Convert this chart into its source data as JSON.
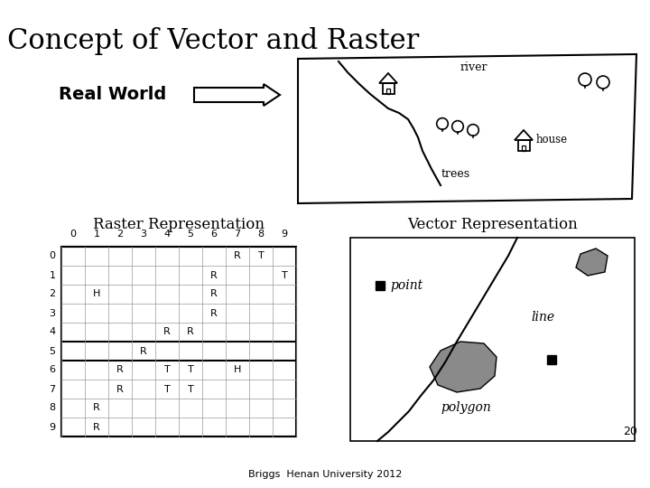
{
  "title": "Concept of Vector and Raster",
  "real_world_label": "Real World",
  "raster_title": "Raster Representation",
  "vector_title": "Vector Representation",
  "footer": "Briggs  Henan University 2012",
  "page_num": "20",
  "bg_color": "#ffffff",
  "grid_cols": 10,
  "grid_rows": 10,
  "grid_cells": [
    {
      "row": 0,
      "col": 7,
      "val": "R"
    },
    {
      "row": 0,
      "col": 8,
      "val": "T"
    },
    {
      "row": 1,
      "col": 6,
      "val": "R"
    },
    {
      "row": 1,
      "col": 9,
      "val": "T"
    },
    {
      "row": 2,
      "col": 1,
      "val": "H"
    },
    {
      "row": 2,
      "col": 6,
      "val": "R"
    },
    {
      "row": 3,
      "col": 6,
      "val": "R"
    },
    {
      "row": 4,
      "col": 4,
      "val": "R"
    },
    {
      "row": 4,
      "col": 5,
      "val": "R"
    },
    {
      "row": 5,
      "col": 3,
      "val": "R"
    },
    {
      "row": 6,
      "col": 2,
      "val": "R"
    },
    {
      "row": 6,
      "col": 4,
      "val": "T"
    },
    {
      "row": 6,
      "col": 5,
      "val": "T"
    },
    {
      "row": 6,
      "col": 7,
      "val": "H"
    },
    {
      "row": 7,
      "col": 2,
      "val": "R"
    },
    {
      "row": 7,
      "col": 4,
      "val": "T"
    },
    {
      "row": 7,
      "col": 5,
      "val": "T"
    },
    {
      "row": 8,
      "col": 1,
      "val": "R"
    },
    {
      "row": 9,
      "col": 1,
      "val": "R"
    }
  ],
  "bold_hlines": [
    0,
    5,
    6,
    10
  ]
}
